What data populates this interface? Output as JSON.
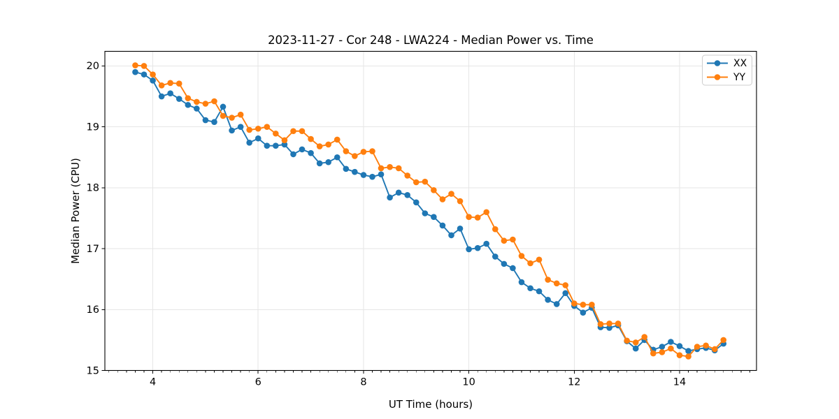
{
  "figure": {
    "background": "#ffffff"
  },
  "chart_data": {
    "type": "line",
    "title": "2023-11-27 - Cor 248 - LWA224 - Median Power vs. Time",
    "xlabel": "UT Time (hours)",
    "ylabel": "Median Power (CPU)",
    "xlim": [
      3.09,
      15.46
    ],
    "ylim": [
      15.0,
      20.24
    ],
    "grid": true,
    "legend_position": "upper right",
    "x_major_ticks": [
      4,
      6,
      8,
      10,
      12,
      14
    ],
    "x_major_tick_labels": [
      "4",
      "6",
      "8",
      "10",
      "12",
      "14"
    ],
    "x_minor_tick_step": 0.16667,
    "y_major_ticks": [
      15,
      16,
      17,
      18,
      19,
      20
    ],
    "y_major_tick_labels": [
      "15",
      "16",
      "17",
      "18",
      "19",
      "20"
    ],
    "x": [
      3.667,
      3.833,
      4.0,
      4.167,
      4.333,
      4.5,
      4.667,
      4.833,
      5.0,
      5.167,
      5.333,
      5.5,
      5.667,
      5.833,
      6.0,
      6.167,
      6.333,
      6.5,
      6.667,
      6.833,
      7.0,
      7.167,
      7.333,
      7.5,
      7.667,
      7.833,
      8.0,
      8.167,
      8.333,
      8.5,
      8.667,
      8.833,
      9.0,
      9.167,
      9.333,
      9.5,
      9.667,
      9.833,
      10.0,
      10.167,
      10.333,
      10.5,
      10.667,
      10.833,
      11.0,
      11.167,
      11.333,
      11.5,
      11.667,
      11.833,
      12.0,
      12.167,
      12.333,
      12.5,
      12.667,
      12.833,
      13.0,
      13.167,
      13.333,
      13.5,
      13.667,
      13.833,
      14.0,
      14.167,
      14.333,
      14.5,
      14.667,
      14.833
    ],
    "series": [
      {
        "name": "XX",
        "color": "#1f77b4",
        "marker": "circle",
        "values": [
          19.9,
          19.86,
          19.76,
          19.5,
          19.55,
          19.46,
          19.36,
          19.3,
          19.11,
          19.08,
          19.33,
          18.94,
          19.0,
          18.74,
          18.81,
          18.69,
          18.69,
          18.71,
          18.55,
          18.63,
          18.57,
          18.4,
          18.42,
          18.5,
          18.31,
          18.26,
          18.21,
          18.18,
          18.22,
          17.84,
          17.92,
          17.88,
          17.76,
          17.58,
          17.52,
          17.38,
          17.22,
          17.33,
          16.99,
          17.01,
          17.08,
          16.87,
          16.75,
          16.68,
          16.45,
          16.35,
          16.3,
          16.16,
          16.09,
          16.27,
          16.06,
          15.95,
          16.03,
          15.71,
          15.7,
          15.74,
          15.48,
          15.36,
          15.5,
          15.34,
          15.39,
          15.47,
          15.4,
          15.32,
          15.35,
          15.37,
          15.33,
          15.44
        ]
      },
      {
        "name": "YY",
        "color": "#ff7f0e",
        "marker": "circle",
        "values": [
          20.01,
          20.0,
          19.86,
          19.68,
          19.72,
          19.71,
          19.47,
          19.41,
          19.38,
          19.42,
          19.18,
          19.15,
          19.2,
          18.95,
          18.97,
          19.0,
          18.89,
          18.78,
          18.93,
          18.93,
          18.8,
          18.68,
          18.71,
          18.79,
          18.6,
          18.52,
          18.59,
          18.6,
          18.32,
          18.34,
          18.32,
          18.2,
          18.09,
          18.1,
          17.96,
          17.81,
          17.9,
          17.78,
          17.52,
          17.51,
          17.6,
          17.32,
          17.13,
          17.15,
          16.88,
          16.76,
          16.82,
          16.49,
          16.43,
          16.4,
          16.1,
          16.08,
          16.08,
          15.76,
          15.77,
          15.77,
          15.49,
          15.46,
          15.55,
          15.28,
          15.3,
          15.36,
          15.25,
          15.23,
          15.39,
          15.41,
          15.35,
          15.5
        ]
      }
    ]
  },
  "colors": {
    "grid": "#e6e6e6",
    "spine": "#000000",
    "tick": "#000000",
    "legend_border": "#cccccc",
    "legend_fill": "#ffffff"
  }
}
